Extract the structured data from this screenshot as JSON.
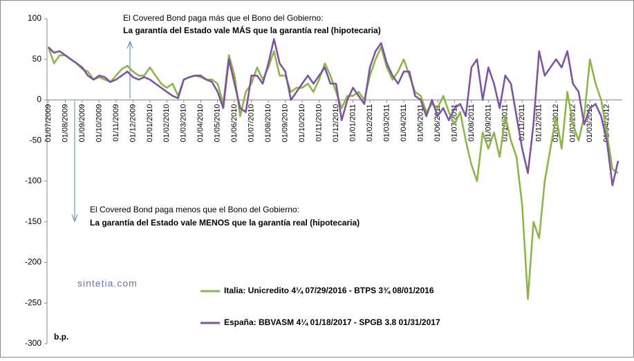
{
  "chart_data": {
    "type": "line",
    "annotations": [
      "El Covered Bond paga más que el Bono del Gobierno:",
      "La garantía del Estado vale MÁS que la garantía real (hipotecaria)",
      "El Covered Bond paga menos que el Bono del Gobierno:",
      "La garantía del Estado vale MENOS que la garantía real (hipotecaria)",
      "b.p.",
      "sintetia.com"
    ],
    "categories": [
      "01/07/2009",
      null,
      null,
      "01/08/2009",
      null,
      null,
      "01/09/2009",
      null,
      null,
      "01/10/2009",
      null,
      null,
      "01/11/2009",
      null,
      null,
      "01/12/2009",
      null,
      null,
      "01/01/2010",
      null,
      null,
      "01/02/2010",
      null,
      null,
      "01/03/2010",
      null,
      null,
      "01/04/2010",
      null,
      null,
      "01/05/2010",
      null,
      null,
      "01/06/2010",
      null,
      null,
      "01/07/2010",
      null,
      null,
      "01/08/2010",
      null,
      null,
      "01/09/2010",
      null,
      null,
      "01/10/2010",
      null,
      null,
      "01/11/2010",
      null,
      null,
      "01/12/2010",
      null,
      null,
      "01/01/2011",
      null,
      null,
      "01/02/2011",
      null,
      null,
      "01/03/2011",
      null,
      null,
      "01/04/2011",
      null,
      null,
      "01/05/2011",
      null,
      null,
      "01/06/2011",
      null,
      null,
      "01/07/2011",
      null,
      null,
      "01/08/2011",
      null,
      null,
      "01/09/2011",
      null,
      null,
      "01/10/2011",
      null,
      null,
      "01/11/2011",
      null,
      null,
      "01/12/2011",
      null,
      null,
      "01/01/2012",
      null,
      null,
      "01/02/2012",
      null,
      null,
      "01/03/2012",
      null,
      null,
      "01/04/2012",
      null,
      null
    ],
    "series": [
      {
        "name": "Italia: Unicredito 4¼ 07/29/2016 - BTPS 3¾ 08/01/2016",
        "color": "#8db54b",
        "values": [
          65,
          45,
          55,
          55,
          50,
          45,
          38,
          35,
          25,
          28,
          25,
          22,
          30,
          38,
          42,
          35,
          30,
          30,
          40,
          30,
          20,
          15,
          20,
          5,
          25,
          28,
          30,
          28,
          25,
          25,
          20,
          -5,
          55,
          30,
          -20,
          10,
          20,
          40,
          25,
          40,
          60,
          30,
          30,
          10,
          15,
          15,
          20,
          10,
          25,
          45,
          30,
          10,
          -10,
          5,
          5,
          10,
          0,
          30,
          50,
          65,
          40,
          25,
          35,
          50,
          30,
          10,
          5,
          -15,
          -5,
          -10,
          5,
          -15,
          -30,
          -15,
          -50,
          -80,
          -100,
          -40,
          -60,
          -40,
          -70,
          -20,
          -50,
          -70,
          -130,
          -245,
          -150,
          -170,
          -100,
          -60,
          -20,
          -60,
          10,
          -30,
          -50,
          -20,
          50,
          20,
          0,
          -40,
          -85,
          -90
        ]
      },
      {
        "name": "España: BBVASM 4¼ 01/18/2017 - SPGB 3.8 01/31/2017",
        "color": "#7d54a2",
        "values": [
          65,
          58,
          60,
          55,
          50,
          45,
          40,
          30,
          25,
          30,
          28,
          22,
          25,
          30,
          35,
          28,
          25,
          28,
          25,
          20,
          15,
          10,
          5,
          2,
          25,
          28,
          30,
          30,
          25,
          22,
          10,
          -10,
          50,
          20,
          -10,
          -15,
          30,
          30,
          20,
          45,
          75,
          45,
          35,
          0,
          10,
          20,
          30,
          20,
          30,
          40,
          20,
          20,
          -25,
          0,
          15,
          5,
          -5,
          40,
          60,
          70,
          45,
          30,
          20,
          35,
          35,
          5,
          0,
          -20,
          0,
          -20,
          -10,
          -25,
          -10,
          -5,
          -20,
          40,
          50,
          0,
          40,
          20,
          -10,
          30,
          20,
          -20,
          -60,
          -90,
          -30,
          60,
          30,
          40,
          50,
          40,
          60,
          20,
          10,
          -30,
          -10,
          -5,
          -20,
          -50,
          -105,
          -75
        ]
      }
    ],
    "ylim": [
      -300,
      100
    ],
    "yticks": [
      -300,
      -250,
      -200,
      -150,
      -100,
      -50,
      0,
      50,
      100
    ],
    "grid": false
  }
}
